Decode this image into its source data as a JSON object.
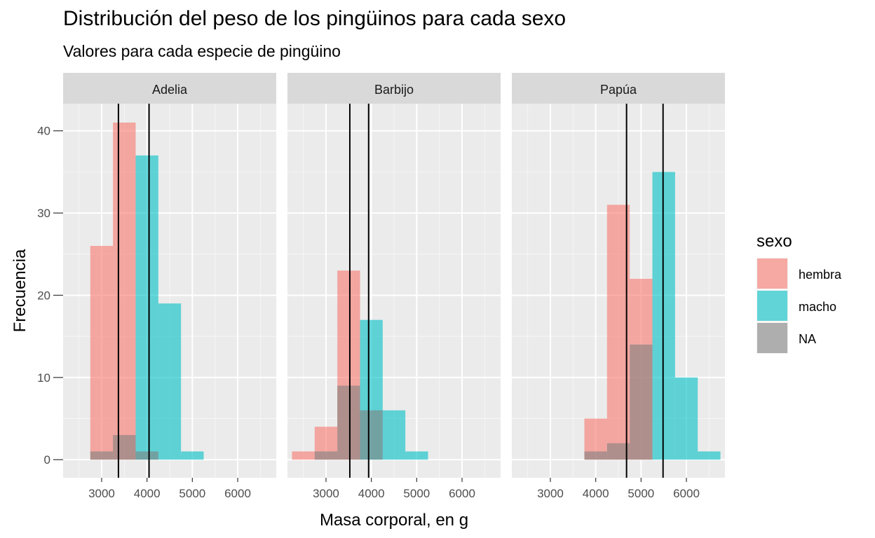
{
  "chart_data": {
    "type": "histogram",
    "title": "Distribución del peso de los pingüinos para cada sexo",
    "subtitle": "Valores para cada especie de pingüino",
    "xlabel": "Masa corporal, en g",
    "ylabel": "Frecuencia",
    "xlim": [
      2150,
      6850
    ],
    "ylim": [
      -2.2,
      43.3
    ],
    "x_ticks": [
      3000,
      4000,
      5000,
      6000
    ],
    "y_ticks": [
      0,
      10,
      20,
      30,
      40
    ],
    "bin_width": 500,
    "grid": true,
    "legend": {
      "title": "sexo",
      "position": "right",
      "entries": [
        {
          "key": "hembra",
          "label": "hembra",
          "color": "#F8766D"
        },
        {
          "key": "macho",
          "label": "macho",
          "color": "#00BFC4"
        },
        {
          "key": "NA",
          "label": "NA",
          "color": "#808080"
        }
      ]
    },
    "colors": {
      "hembra": "#F8766D",
      "macho": "#00BFC4",
      "NA": "#808080",
      "mean_line": "#000000",
      "panel_bg": "#EBEBEB",
      "strip_bg": "#D9D9D9",
      "grid": "#FFFFFF"
    },
    "panels": [
      {
        "name": "Adelia",
        "mean_lines": [
          3370,
          4045
        ],
        "series": [
          {
            "name": "hembra",
            "bins": [
              [
                2750,
                3250,
                26
              ],
              [
                3250,
                3750,
                41
              ]
            ]
          },
          {
            "name": "macho",
            "bins": [
              [
                3750,
                4250,
                37
              ],
              [
                4250,
                4750,
                19
              ],
              [
                4750,
                5250,
                1
              ]
            ]
          },
          {
            "name": "NA",
            "bins": [
              [
                2750,
                3250,
                1
              ],
              [
                3250,
                3750,
                3
              ],
              [
                3750,
                4250,
                1
              ]
            ]
          }
        ]
      },
      {
        "name": "Barbijo",
        "mean_lines": [
          3525,
          3940
        ],
        "series": [
          {
            "name": "hembra",
            "bins": [
              [
                2250,
                2750,
                1
              ],
              [
                2750,
                3250,
                4
              ],
              [
                3250,
                3750,
                23
              ]
            ]
          },
          {
            "name": "macho",
            "bins": [
              [
                3750,
                4250,
                17
              ],
              [
                4250,
                4750,
                6
              ],
              [
                4750,
                5250,
                1
              ]
            ]
          },
          {
            "name": "NA",
            "bins": [
              [
                2750,
                3250,
                1
              ],
              [
                3250,
                3750,
                9
              ],
              [
                3750,
                4250,
                6
              ]
            ]
          }
        ]
      },
      {
        "name": "Papúa",
        "mean_lines": [
          4680,
          5485
        ],
        "series": [
          {
            "name": "hembra",
            "bins": [
              [
                3750,
                4250,
                5
              ],
              [
                4250,
                4750,
                31
              ],
              [
                4750,
                5250,
                22
              ]
            ]
          },
          {
            "name": "macho",
            "bins": [
              [
                5250,
                5750,
                35
              ],
              [
                5750,
                6250,
                10
              ],
              [
                6250,
                6750,
                1
              ]
            ]
          },
          {
            "name": "NA",
            "bins": [
              [
                3750,
                4250,
                1
              ],
              [
                4250,
                4750,
                2
              ],
              [
                4750,
                5250,
                14
              ]
            ]
          }
        ]
      }
    ]
  }
}
